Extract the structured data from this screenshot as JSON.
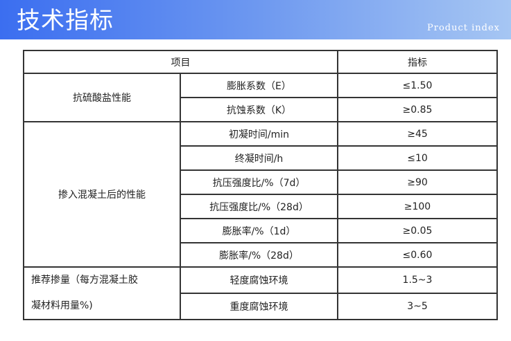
{
  "header": {
    "title": "技术指标",
    "subtitle": "Product index"
  },
  "table": {
    "headers": [
      "项目",
      "指标"
    ],
    "groups": [
      {
        "label": "抗硫酸盐性能",
        "rows": [
          {
            "item": "膨胀系数（E）",
            "value": "≤1.50"
          },
          {
            "item": "抗蚀系数（K）",
            "value": "≥0.85"
          }
        ]
      },
      {
        "label": "掺入混凝土后的性能",
        "rows": [
          {
            "item": "初凝时间/min",
            "value": "≥45"
          },
          {
            "item": "终凝时间/h",
            "value": "≤10"
          },
          {
            "item": "抗压强度比/%（7d）",
            "value": "≥90"
          },
          {
            "item": "抗压强度比/%（28d）",
            "value": "≥100"
          },
          {
            "item": "膨胀率/%（1d）",
            "value": "≥0.05"
          },
          {
            "item": "膨胀率/%（28d）",
            "value": "≤0.60"
          }
        ]
      },
      {
        "label_lines": [
          "推荐掺量（每方混凝土胶",
          "凝材料用量%)"
        ],
        "rows": [
          {
            "item": "轻度腐蚀环境",
            "value": "1.5~3"
          },
          {
            "item": "重度腐蚀环境",
            "value": "3~5"
          }
        ]
      }
    ]
  }
}
